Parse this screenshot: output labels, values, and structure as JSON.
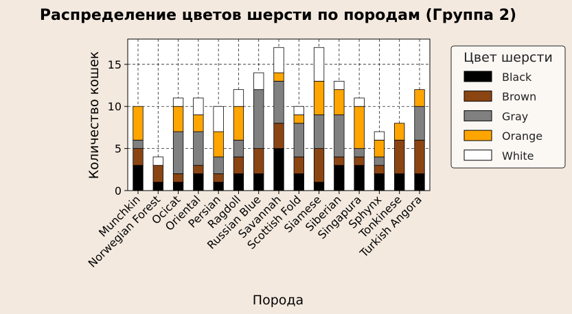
{
  "chart_data": {
    "type": "bar",
    "stacked": true,
    "title": "Распределение цветов шерсти по породам (Группа 2)",
    "xlabel": "Порода",
    "ylabel": "Количество кошек",
    "ylim": [
      0,
      18
    ],
    "yticks": [
      0,
      5,
      10,
      15
    ],
    "grid": true,
    "legend_title": "Цвет шерсти",
    "legend_position": "right",
    "categories": [
      "Munchkin",
      "Norwegian Forest",
      "Ocicat",
      "Oriental",
      "Persian",
      "Ragdoll",
      "Russian Blue",
      "Savannah",
      "Scottish Fold",
      "Siamese",
      "Siberian",
      "Singapura",
      "Sphynx",
      "Tonkinese",
      "Turkish Angora"
    ],
    "series": [
      {
        "name": "Black",
        "color": "#000000",
        "values": [
          3,
          1,
          1,
          2,
          1,
          2,
          2,
          5,
          2,
          1,
          3,
          3,
          2,
          2,
          2
        ]
      },
      {
        "name": "Brown",
        "color": "#8b4513",
        "values": [
          2,
          2,
          1,
          1,
          1,
          2,
          3,
          3,
          2,
          4,
          1,
          1,
          1,
          4,
          4
        ]
      },
      {
        "name": "Gray",
        "color": "#808080",
        "values": [
          1,
          0,
          5,
          4,
          2,
          2,
          7,
          5,
          4,
          4,
          5,
          1,
          1,
          0,
          4
        ]
      },
      {
        "name": "Orange",
        "color": "#ffa500",
        "values": [
          4,
          0,
          3,
          2,
          3,
          4,
          0,
          1,
          1,
          4,
          3,
          5,
          2,
          2,
          2
        ]
      },
      {
        "name": "White",
        "color": "#ffffff",
        "values": [
          0,
          1,
          1,
          2,
          3,
          2,
          2,
          3,
          1,
          4,
          1,
          1,
          1,
          0,
          0
        ]
      }
    ]
  }
}
